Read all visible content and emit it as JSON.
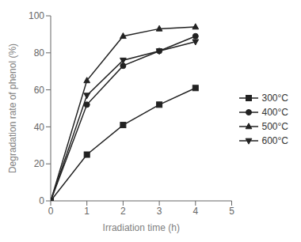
{
  "chart_data": {
    "type": "line",
    "xlabel": "Irradiation time (h)",
    "ylabel": "Degradation rate of phenol (%)",
    "x": [
      0,
      1,
      2,
      3,
      4
    ],
    "series": [
      {
        "name": "300°C",
        "color": "#222222",
        "marker": "square",
        "line_style": "solid",
        "values": [
          0,
          25,
          41,
          52,
          61
        ]
      },
      {
        "name": "400°C",
        "color": "#222222",
        "marker": "circle",
        "line_style": "solid",
        "values": [
          0,
          52,
          73,
          81,
          89
        ]
      },
      {
        "name": "500°C",
        "color": "#222222",
        "marker": "triangle-up",
        "line_style": "solid",
        "values": [
          0,
          65,
          89,
          93,
          94
        ]
      },
      {
        "name": "600°C",
        "color": "#222222",
        "marker": "triangle-down",
        "line_style": "solid",
        "values": [
          0,
          57,
          76,
          81,
          86
        ]
      }
    ],
    "xlim": [
      0,
      5
    ],
    "ylim": [
      0,
      100
    ],
    "xticks": [
      0,
      1,
      2,
      3,
      4,
      5
    ],
    "yticks": [
      0,
      20,
      40,
      60,
      80,
      100
    ],
    "grid": false,
    "legend": "right"
  }
}
